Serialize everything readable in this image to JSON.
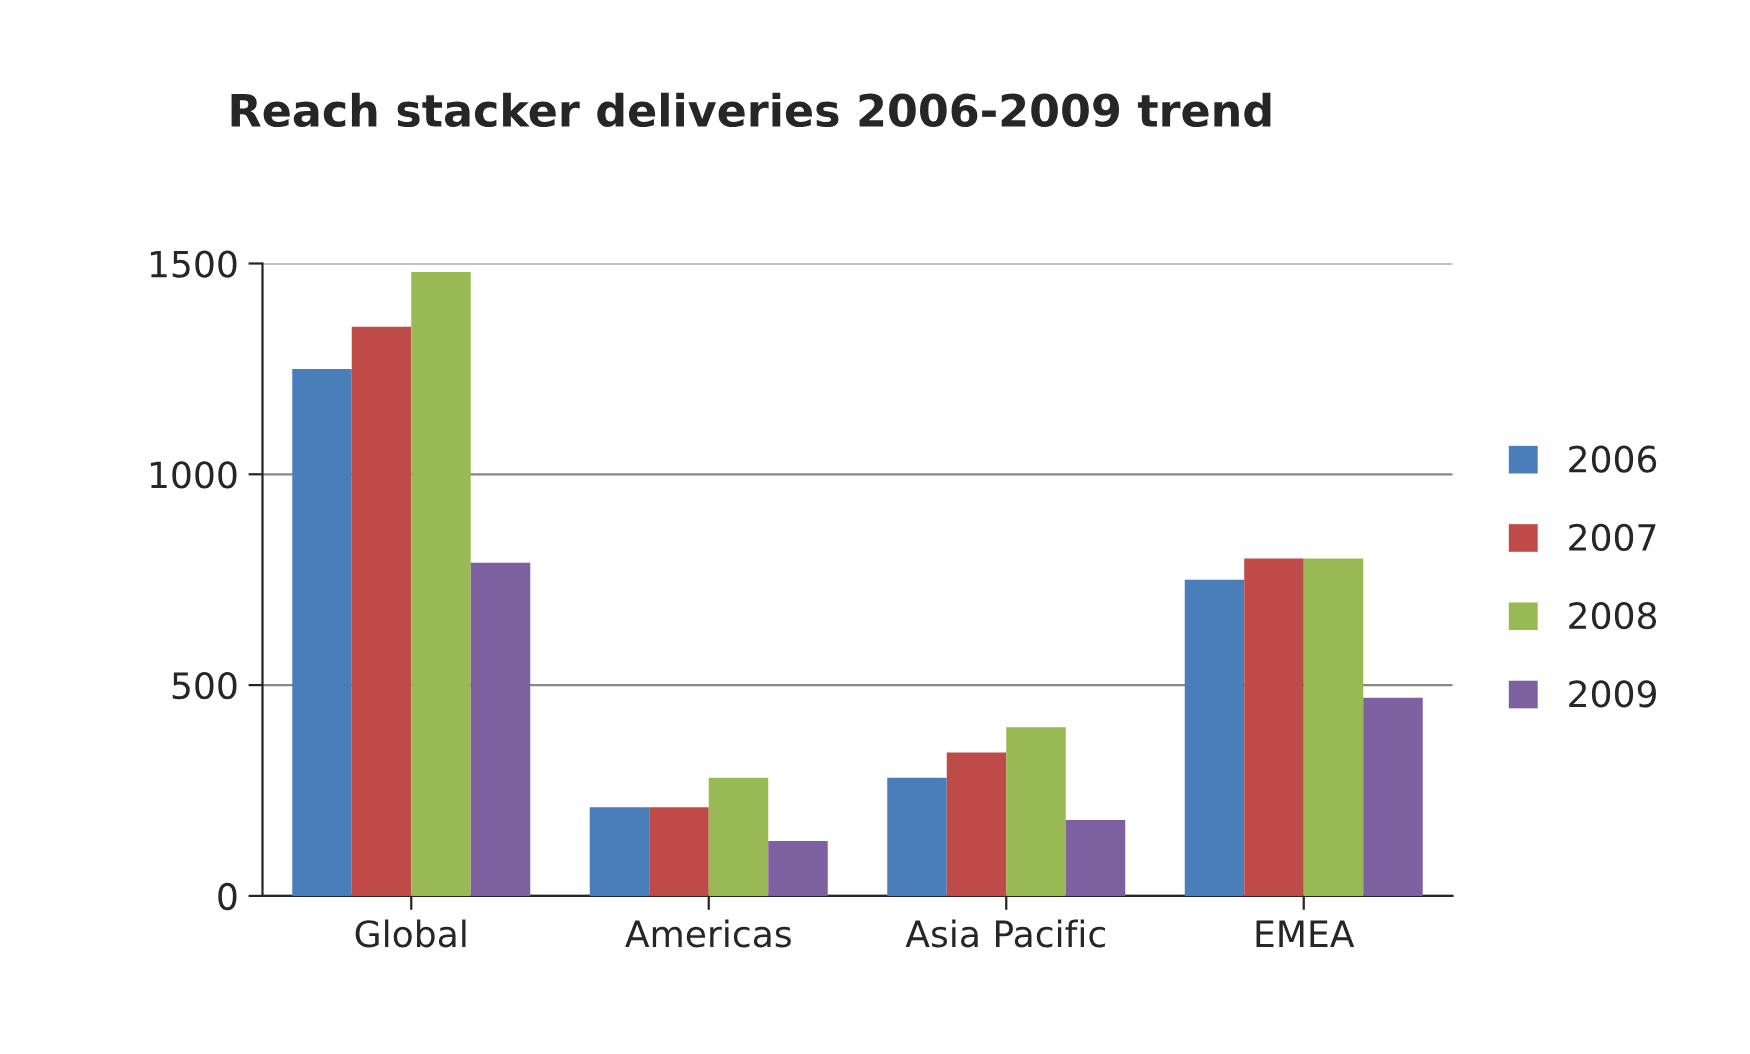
{
  "chart_data": {
    "type": "bar",
    "title": "Reach stacker deliveries 2006-2009 trend",
    "categories": [
      "Global",
      "Americas",
      "Asia Pacific",
      "EMEA"
    ],
    "series": [
      {
        "name": "2006",
        "color": "#4a7ebb",
        "values": [
          1250,
          210,
          280,
          750
        ]
      },
      {
        "name": "2007",
        "color": "#be4b48",
        "values": [
          1350,
          210,
          340,
          800
        ]
      },
      {
        "name": "2008",
        "color": "#98b954",
        "values": [
          1480,
          280,
          400,
          800
        ]
      },
      {
        "name": "2009",
        "color": "#7d60a0",
        "values": [
          790,
          130,
          180,
          470
        ]
      }
    ],
    "ylim": [
      0,
      1500
    ],
    "yticks": [
      0,
      500,
      1000,
      1500
    ],
    "grid": "y",
    "legend": "right"
  }
}
